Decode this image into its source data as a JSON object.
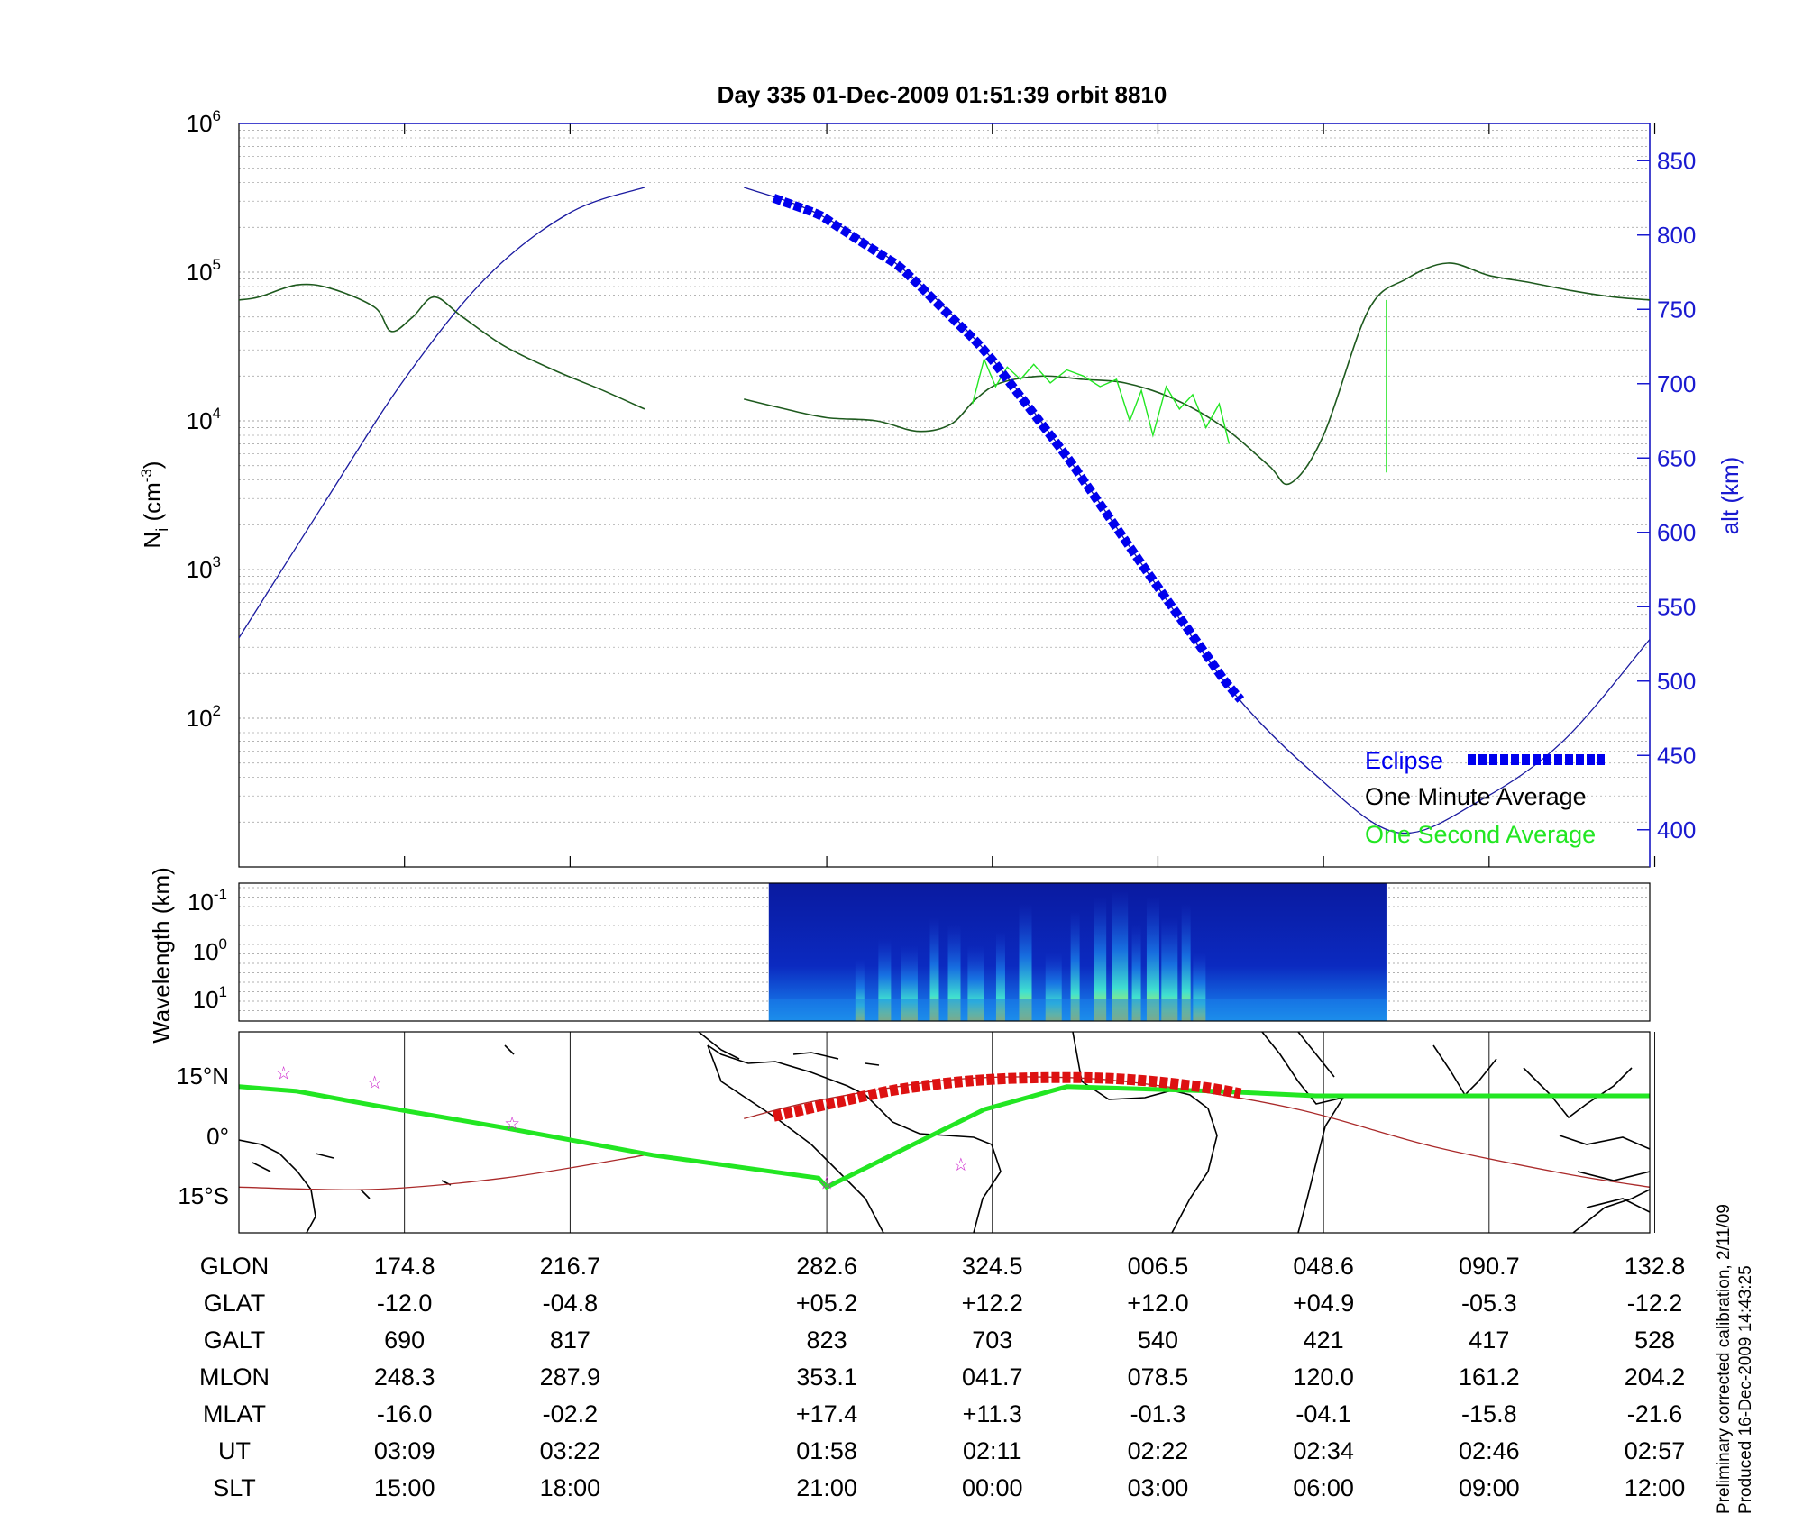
{
  "chart_data": [
    {
      "type": "line",
      "title": "Day 335  01-Dec-2009 01:51:39   orbit 8810",
      "ylabel_left": "N",
      "ylabel_left_sub": "i",
      "ylabel_left_unit": "(cm-3)",
      "ylabel_right": "alt (km)",
      "y_scale": "log",
      "ylim": [
        10,
        1000000
      ],
      "yticks": [
        "10^2",
        "10^3",
        "10^4",
        "10^5",
        "10^6"
      ],
      "y2lim": [
        375,
        875
      ],
      "y2ticks": [
        400,
        450,
        500,
        550,
        600,
        650,
        700,
        750,
        800,
        850
      ],
      "x_index_range": [
        0,
        8.52
      ],
      "grid": true,
      "legend_position": "bottom-right",
      "legend": [
        {
          "label": "Eclipse",
          "color": "#0000ee"
        },
        {
          "label": "One Minute Average",
          "color": "#000000"
        },
        {
          "label": "One Second Average",
          "color": "#22e622"
        }
      ],
      "series": [
        {
          "name": "One Minute Average",
          "color": "#1e5a1e",
          "x": [
            0,
            0.12,
            0.35,
            0.55,
            0.82,
            0.92,
            1.05,
            1.18,
            1.35,
            1.6,
            1.9,
            2.2,
            2.45
          ],
          "y": [
            65000,
            68000,
            82000,
            78000,
            58000,
            40000,
            50000,
            68000,
            50000,
            32000,
            22000,
            16000,
            12000
          ]
        },
        {
          "name": "One Minute Average",
          "color": "#1e5a1e",
          "x": [
            3.05,
            3.3,
            3.55,
            3.85,
            4.1,
            4.3,
            4.45,
            4.6,
            4.85,
            5.1,
            5.35,
            5.65,
            5.95,
            6.22,
            6.35,
            6.55,
            6.82,
            7.05,
            7.3,
            7.55,
            7.8,
            8.05,
            8.3,
            8.52
          ],
          "y": [
            14000,
            12000,
            10500,
            10000,
            8500,
            9500,
            14000,
            18000,
            20000,
            19000,
            18000,
            14000,
            9000,
            5000,
            3800,
            8000,
            55000,
            90000,
            115000,
            95000,
            85000,
            75000,
            68000,
            65000
          ]
        },
        {
          "name": "One Second Average",
          "color": "#22e622",
          "x": [
            4.43,
            4.5,
            4.57,
            4.64,
            4.72,
            4.8,
            4.9,
            5.0,
            5.1,
            5.2,
            5.3,
            5.38,
            5.45,
            5.52,
            5.6,
            5.68,
            5.76,
            5.84,
            5.92,
            5.98
          ],
          "y": [
            13000,
            26000,
            17000,
            23000,
            19000,
            24000,
            18000,
            22000,
            20000,
            17000,
            19000,
            10000,
            16000,
            8000,
            17000,
            12000,
            15000,
            9000,
            13000,
            7000
          ]
        },
        {
          "name": "One Second Average spike",
          "color": "#22e622",
          "x": [
            6.93,
            6.93
          ],
          "y": [
            4500,
            65000
          ]
        }
      ],
      "altitude_series": {
        "name": "alt (km)",
        "color": "#1a1aa0",
        "x": [
          0,
          0.5,
          1.0,
          1.5,
          2.0,
          2.45,
          3.05,
          3.5,
          4.0,
          4.5,
          5.0,
          5.5,
          6.0,
          6.5,
          7.0,
          7.5,
          8.0,
          8.52
        ],
        "y": [
          529,
          617,
          703,
          772,
          815,
          832,
          832,
          814,
          778,
          723,
          651,
          571,
          493,
          437,
          398,
          420,
          460,
          528
        ]
      },
      "eclipse_segment": {
        "x_start": 3.23,
        "x_end": 6.05,
        "color": "#0000ee"
      }
    },
    {
      "type": "heatmap",
      "ylabel": "Wavelength (km)",
      "yticks": [
        "10^-1",
        "10^0",
        "10^1"
      ],
      "data_x_range": [
        3.2,
        6.93
      ],
      "colormap": "jet"
    },
    {
      "type": "scatter",
      "map": "world_coastline",
      "ytick_labels": [
        "15°N",
        "0°",
        "15°S"
      ],
      "lat_range": [
        -22,
        22
      ],
      "track_color": "#22e622",
      "orbit_color": "#aa2a2a",
      "eclipse_track_color": "#dd1111",
      "footprint_track": {
        "x": [
          0,
          0.35,
          0.8,
          1.6,
          2.5,
          3.5,
          3.55,
          4.5,
          5.0,
          5.9,
          6.5,
          7.0,
          7.5,
          8.52
        ],
        "lat": [
          10,
          9,
          6,
          1,
          -5,
          -10,
          -12,
          5,
          10,
          9,
          8,
          8,
          8,
          8
        ]
      },
      "orbit_track": {
        "x": [
          0,
          0.8,
          1.6,
          2.45,
          3.05,
          3.5,
          4.3,
          5.0,
          5.6,
          6.4,
          7.2,
          8.0,
          8.52
        ],
        "lat": [
          -12,
          -12.5,
          -10,
          -5,
          3,
          7,
          11.5,
          12,
          10,
          5,
          -3,
          -9,
          -12
        ]
      },
      "eclipse_track": {
        "x": [
          3.23,
          3.6,
          4.0,
          4.5,
          5.0,
          5.4,
          5.8,
          6.05
        ],
        "lat": [
          3.5,
          6.5,
          9.5,
          11.5,
          12,
          11.5,
          10,
          8.5
        ]
      },
      "markers": [
        {
          "x": 0.27,
          "lat": 13,
          "symbol": "☆"
        },
        {
          "x": 0.82,
          "lat": 11,
          "symbol": "☆"
        },
        {
          "x": 1.65,
          "lat": 2,
          "symbol": "☆"
        },
        {
          "x": 3.55,
          "lat": -11,
          "symbol": "☆"
        },
        {
          "x": 4.36,
          "lat": -7,
          "symbol": "☆"
        }
      ]
    }
  ],
  "table": {
    "x_positions": [
      1,
      2,
      3.55,
      4.55,
      5.55,
      6.55,
      7.55,
      8.55
    ],
    "rows": [
      {
        "label": "GLON",
        "values": [
          "174.8",
          "216.7",
          "282.6",
          "324.5",
          "006.5",
          "048.6",
          "090.7",
          "132.8"
        ]
      },
      {
        "label": "GLAT",
        "values": [
          "-12.0",
          "-04.8",
          "+05.2",
          "+12.2",
          "+12.0",
          "+04.9",
          "-05.3",
          "-12.2"
        ]
      },
      {
        "label": "GALT",
        "values": [
          "690",
          "817",
          "823",
          "703",
          "540",
          "421",
          "417",
          "528"
        ]
      },
      {
        "label": "MLON",
        "values": [
          "248.3",
          "287.9",
          "353.1",
          "041.7",
          "078.5",
          "120.0",
          "161.2",
          "204.2"
        ]
      },
      {
        "label": "MLAT",
        "values": [
          "-16.0",
          "-02.2",
          "+17.4",
          "+11.3",
          "-01.3",
          "-04.1",
          "-15.8",
          "-21.6"
        ]
      },
      {
        "label": "UT",
        "values": [
          "03:09",
          "03:22",
          "01:58",
          "02:11",
          "02:22",
          "02:34",
          "02:46",
          "02:57"
        ]
      },
      {
        "label": "SLT",
        "values": [
          "15:00",
          "18:00",
          "21:00",
          "00:00",
          "03:00",
          "06:00",
          "09:00",
          "12:00"
        ]
      }
    ]
  },
  "footnote": {
    "line1": "Preliminary corrected calibration, 2/11/09",
    "line2": "Produced 16-Dec-2009 14:43:25"
  },
  "colors": {
    "axis": "#000000",
    "right_axis": "#1a1ad0",
    "grid": "#999999"
  }
}
